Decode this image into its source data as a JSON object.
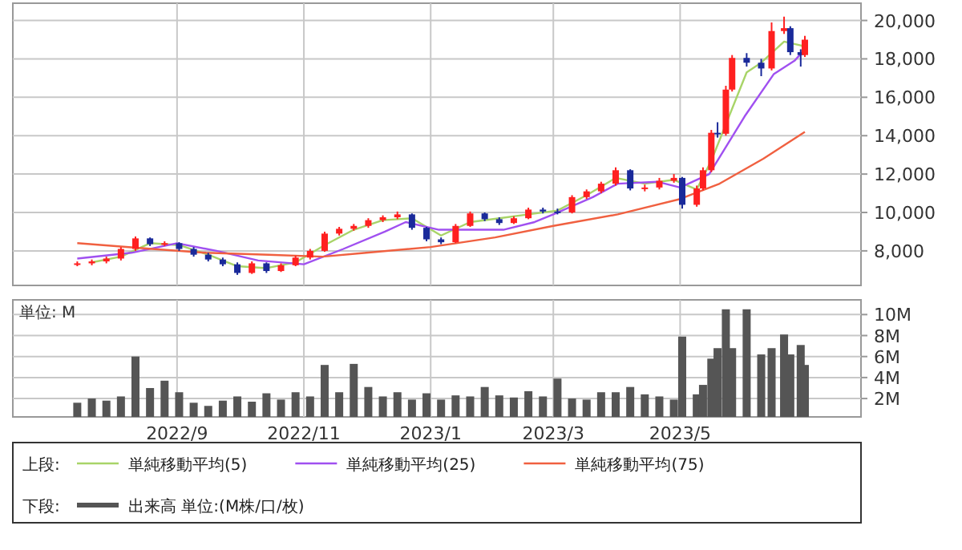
{
  "chart_data": [
    {
      "type": "candlestick",
      "x": [
        "2022-07-15",
        "2022-07-22",
        "2022-07-29",
        "2022-08-05",
        "2022-08-12",
        "2022-08-19",
        "2022-08-26",
        "2022-09-02",
        "2022-09-09",
        "2022-09-16",
        "2022-09-23",
        "2022-09-30",
        "2022-10-07",
        "2022-10-14",
        "2022-10-21",
        "2022-10-28",
        "2022-11-04",
        "2022-11-11",
        "2022-11-18",
        "2022-11-25",
        "2022-12-02",
        "2022-12-09",
        "2022-12-16",
        "2022-12-23",
        "2022-12-30",
        "2023-01-06",
        "2023-01-13",
        "2023-01-20",
        "2023-01-27",
        "2023-02-03",
        "2023-02-10",
        "2023-02-17",
        "2023-02-24",
        "2023-03-03",
        "2023-03-10",
        "2023-03-17",
        "2023-03-24",
        "2023-03-31",
        "2023-04-07",
        "2023-04-14",
        "2023-04-21",
        "2023-04-28",
        "2023-05-02",
        "2023-05-09",
        "2023-05-12",
        "2023-05-16",
        "2023-05-19",
        "2023-05-23",
        "2023-05-26",
        "2023-06-02",
        "2023-06-09",
        "2023-06-14",
        "2023-06-20",
        "2023-06-23",
        "2023-06-28",
        "2023-06-30"
      ],
      "ohlc": [
        [
          7300,
          7450,
          7200,
          7350
        ],
        [
          7350,
          7550,
          7250,
          7450
        ],
        [
          7450,
          7700,
          7350,
          7600
        ],
        [
          7600,
          8200,
          7500,
          8100
        ],
        [
          8100,
          8750,
          8000,
          8650
        ],
        [
          8650,
          8700,
          8250,
          8350
        ],
        [
          8350,
          8500,
          8250,
          8400
        ],
        [
          8400,
          8450,
          8000,
          8100
        ],
        [
          8100,
          8200,
          7700,
          7800
        ],
        [
          7800,
          7900,
          7450,
          7550
        ],
        [
          7550,
          7650,
          7200,
          7300
        ],
        [
          7300,
          7400,
          6750,
          6850
        ],
        [
          6850,
          7450,
          6800,
          7350
        ],
        [
          7350,
          7400,
          6850,
          6950
        ],
        [
          6950,
          7350,
          6900,
          7250
        ],
        [
          7250,
          7750,
          7200,
          7650
        ],
        [
          7650,
          8100,
          7550,
          8000
        ],
        [
          8000,
          9000,
          7950,
          8900
        ],
        [
          8900,
          9250,
          8800,
          9150
        ],
        [
          9150,
          9400,
          9050,
          9300
        ],
        [
          9300,
          9700,
          9200,
          9600
        ],
        [
          9600,
          9850,
          9500,
          9750
        ],
        [
          9750,
          10050,
          9650,
          9900
        ],
        [
          9900,
          9950,
          9100,
          9200
        ],
        [
          9200,
          9250,
          8500,
          8600
        ],
        [
          8600,
          8700,
          8350,
          8450
        ],
        [
          8450,
          9400,
          8400,
          9300
        ],
        [
          9300,
          10050,
          9250,
          9950
        ],
        [
          9950,
          10000,
          9550,
          9650
        ],
        [
          9650,
          9750,
          9350,
          9450
        ],
        [
          9450,
          9800,
          9400,
          9700
        ],
        [
          9700,
          10250,
          9650,
          10150
        ],
        [
          10150,
          10250,
          9950,
          10050
        ],
        [
          10050,
          10200,
          9900,
          10000
        ],
        [
          10000,
          10900,
          9950,
          10800
        ],
        [
          10800,
          11200,
          10700,
          11100
        ],
        [
          11100,
          11600,
          11000,
          11500
        ],
        [
          11500,
          12350,
          11400,
          12200
        ],
        [
          12200,
          12250,
          11150,
          11250
        ],
        [
          11250,
          11450,
          11100,
          11300
        ],
        [
          11300,
          11800,
          11200,
          11650
        ],
        [
          11650,
          12000,
          11550,
          11800
        ],
        [
          11800,
          11850,
          10200,
          10400
        ],
        [
          10400,
          11400,
          10300,
          11250
        ],
        [
          11250,
          12350,
          11150,
          12200
        ],
        [
          12200,
          14300,
          12100,
          14150
        ],
        [
          14150,
          14700,
          13900,
          14100
        ],
        [
          14100,
          16600,
          14000,
          16400
        ],
        [
          16400,
          18200,
          16300,
          18050
        ],
        [
          18050,
          18300,
          17600,
          17800
        ],
        [
          17800,
          18000,
          17100,
          17500
        ],
        [
          17500,
          19900,
          17400,
          19450
        ],
        [
          19450,
          20200,
          19300,
          19600
        ],
        [
          19600,
          19700,
          18200,
          18350
        ],
        [
          18350,
          18500,
          17600,
          18200
        ],
        [
          18200,
          19200,
          18100,
          19000
        ]
      ],
      "colors": [
        "#ff2020",
        "#ff2020",
        "#ff2020",
        "#ff2020",
        "#ff2020",
        "#1a2a9a",
        "#ff2020",
        "#1a2a9a",
        "#1a2a9a",
        "#1a2a9a",
        "#1a2a9a",
        "#1a2a9a",
        "#ff2020",
        "#1a2a9a",
        "#ff2020",
        "#ff2020",
        "#ff2020",
        "#ff2020",
        "#ff2020",
        "#ff2020",
        "#ff2020",
        "#ff2020",
        "#ff2020",
        "#1a2a9a",
        "#1a2a9a",
        "#1a2a9a",
        "#ff2020",
        "#ff2020",
        "#1a2a9a",
        "#1a2a9a",
        "#ff2020",
        "#ff2020",
        "#1a2a9a",
        "#1a2a9a",
        "#ff2020",
        "#ff2020",
        "#ff2020",
        "#ff2020",
        "#1a2a9a",
        "#ff2020",
        "#ff2020",
        "#ff2020",
        "#1a2a9a",
        "#ff2020",
        "#ff2020",
        "#ff2020",
        "#1a2a9a",
        "#ff2020",
        "#ff2020",
        "#1a2a9a",
        "#1a2a9a",
        "#ff2020",
        "#ff2020",
        "#1a2a9a",
        "#1a2a9a",
        "#ff2020"
      ],
      "series": [
        {
          "type": "line",
          "name": "単純移動平均(5)",
          "color": "#a8d468",
          "x": [
            "2022-07-22",
            "2022-08-05",
            "2022-08-19",
            "2022-09-02",
            "2022-09-16",
            "2022-09-30",
            "2022-10-14",
            "2022-10-28",
            "2022-11-11",
            "2022-11-25",
            "2022-12-09",
            "2022-12-23",
            "2023-01-06",
            "2023-01-20",
            "2023-02-03",
            "2023-02-17",
            "2023-03-03",
            "2023-03-17",
            "2023-03-31",
            "2023-04-14",
            "2023-04-28",
            "2023-05-09",
            "2023-05-16",
            "2023-06-02",
            "2023-06-09",
            "2023-06-20",
            "2023-06-28",
            "2023-06-30"
          ],
          "values": [
            7400,
            7700,
            8400,
            8300,
            7800,
            7200,
            7100,
            7400,
            8300,
            9100,
            9600,
            9700,
            8800,
            9500,
            9700,
            9900,
            10100,
            10900,
            11800,
            11500,
            11700,
            11200,
            12700,
            17300,
            17800,
            18900,
            18700,
            18600
          ]
        },
        {
          "type": "line",
          "name": "単純移動平均(25)",
          "color": "#a050f0",
          "x": [
            "2022-07-15",
            "2022-08-10",
            "2022-09-01",
            "2022-09-20",
            "2022-10-10",
            "2022-11-01",
            "2022-11-20",
            "2022-12-10",
            "2022-12-20",
            "2023-01-05",
            "2023-01-20",
            "2023-02-05",
            "2023-02-20",
            "2023-03-01",
            "2023-03-20",
            "2023-04-01",
            "2023-04-20",
            "2023-05-01",
            "2023-05-15",
            "2023-06-01",
            "2023-06-15",
            "2023-06-25",
            "2023-06-30"
          ],
          "values": [
            7600,
            7900,
            8400,
            8000,
            7500,
            7300,
            8100,
            9000,
            9500,
            9100,
            9100,
            9100,
            9500,
            9900,
            10800,
            11500,
            11600,
            11300,
            12000,
            15000,
            17200,
            17900,
            18500
          ]
        },
        {
          "type": "line",
          "name": "単純移動平均(75)",
          "color": "#f06040",
          "x": [
            "2022-07-15",
            "2022-08-20",
            "2022-09-15",
            "2022-10-15",
            "2022-11-10",
            "2022-12-01",
            "2023-01-01",
            "2023-02-01",
            "2023-03-01",
            "2023-04-01",
            "2023-05-01",
            "2023-05-20",
            "2023-06-10",
            "2023-06-30"
          ],
          "values": [
            8400,
            8100,
            7900,
            7800,
            7700,
            7900,
            8200,
            8700,
            9300,
            9900,
            10700,
            11500,
            12800,
            14200
          ]
        }
      ],
      "xlim": [
        "2022-06-14",
        "2023-07-27"
      ],
      "xticks": [
        {
          "value": "2022-09-01",
          "label": null
        },
        {
          "value": "2022-11-01",
          "label": null
        },
        {
          "value": "2023-01-01",
          "label": null
        },
        {
          "value": "2023-03-01",
          "label": null
        },
        {
          "value": "2023-05-01",
          "label": null
        }
      ],
      "ylim": [
        6200,
        20900
      ],
      "yticks": [
        {
          "value": 8000,
          "label": "8,000"
        },
        {
          "value": 10000,
          "label": "10,000"
        },
        {
          "value": 12000,
          "label": "12,000"
        },
        {
          "value": 14000,
          "label": "14,000"
        },
        {
          "value": 16000,
          "label": "16,000"
        },
        {
          "value": 18000,
          "label": "18,000"
        },
        {
          "value": 20000,
          "label": "20,000"
        }
      ],
      "grid": true,
      "tick_labels": "y",
      "legend": "bottom",
      "legend_title": "上段:"
    },
    {
      "type": "bar",
      "ylabel": "単位: M",
      "x": [
        "2022-07-15",
        "2022-07-22",
        "2022-07-29",
        "2022-08-05",
        "2022-08-12",
        "2022-08-19",
        "2022-08-26",
        "2022-09-02",
        "2022-09-09",
        "2022-09-16",
        "2022-09-23",
        "2022-09-30",
        "2022-10-07",
        "2022-10-14",
        "2022-10-21",
        "2022-10-28",
        "2022-11-04",
        "2022-11-11",
        "2022-11-18",
        "2022-11-25",
        "2022-12-02",
        "2022-12-09",
        "2022-12-16",
        "2022-12-23",
        "2022-12-30",
        "2023-01-06",
        "2023-01-13",
        "2023-01-20",
        "2023-01-27",
        "2023-02-03",
        "2023-02-10",
        "2023-02-17",
        "2023-02-24",
        "2023-03-03",
        "2023-03-10",
        "2023-03-17",
        "2023-03-24",
        "2023-03-31",
        "2023-04-07",
        "2023-04-14",
        "2023-04-21",
        "2023-04-28",
        "2023-05-02",
        "2023-05-09",
        "2023-05-12",
        "2023-05-16",
        "2023-05-19",
        "2023-05-23",
        "2023-05-26",
        "2023-06-02",
        "2023-06-09",
        "2023-06-14",
        "2023-06-20",
        "2023-06-23",
        "2023-06-28",
        "2023-06-30"
      ],
      "series": [
        {
          "name": "出来高 単位:(M株/口/枚)",
          "color": "#555555",
          "values": [
            1.6,
            2.0,
            1.8,
            2.2,
            6.0,
            3.0,
            3.7,
            2.6,
            1.6,
            1.3,
            1.8,
            2.2,
            1.7,
            2.5,
            1.9,
            2.6,
            2.2,
            5.2,
            2.6,
            5.3,
            3.1,
            2.2,
            2.6,
            1.9,
            2.5,
            1.9,
            2.3,
            2.2,
            3.1,
            2.3,
            2.1,
            2.7,
            2.2,
            3.9,
            2.0,
            1.9,
            2.6,
            2.6,
            3.1,
            2.4,
            2.2,
            1.9,
            7.9,
            2.4,
            3.3,
            5.8,
            6.8,
            10.5,
            6.8,
            10.5,
            6.2,
            6.8,
            8.1,
            6.2,
            7.1,
            5.2
          ]
        }
      ],
      "xlim": [
        "2022-06-14",
        "2023-07-27"
      ],
      "xticks": [
        {
          "value": "2022-09-01",
          "label": "2022/9"
        },
        {
          "value": "2022-11-01",
          "label": "2022/11"
        },
        {
          "value": "2023-01-01",
          "label": "2023/1"
        },
        {
          "value": "2023-03-01",
          "label": "2023/3"
        },
        {
          "value": "2023-05-01",
          "label": "2023/5"
        }
      ],
      "ylim": [
        0.25,
        11.4
      ],
      "yticks": [
        {
          "value": 2,
          "label": "2M"
        },
        {
          "value": 4,
          "label": "4M"
        },
        {
          "value": 6,
          "label": "6M"
        },
        {
          "value": 8,
          "label": "8M"
        },
        {
          "value": 10,
          "label": "10M"
        }
      ],
      "grid": true,
      "legend": "bottom",
      "legend_title": "下段:"
    }
  ]
}
